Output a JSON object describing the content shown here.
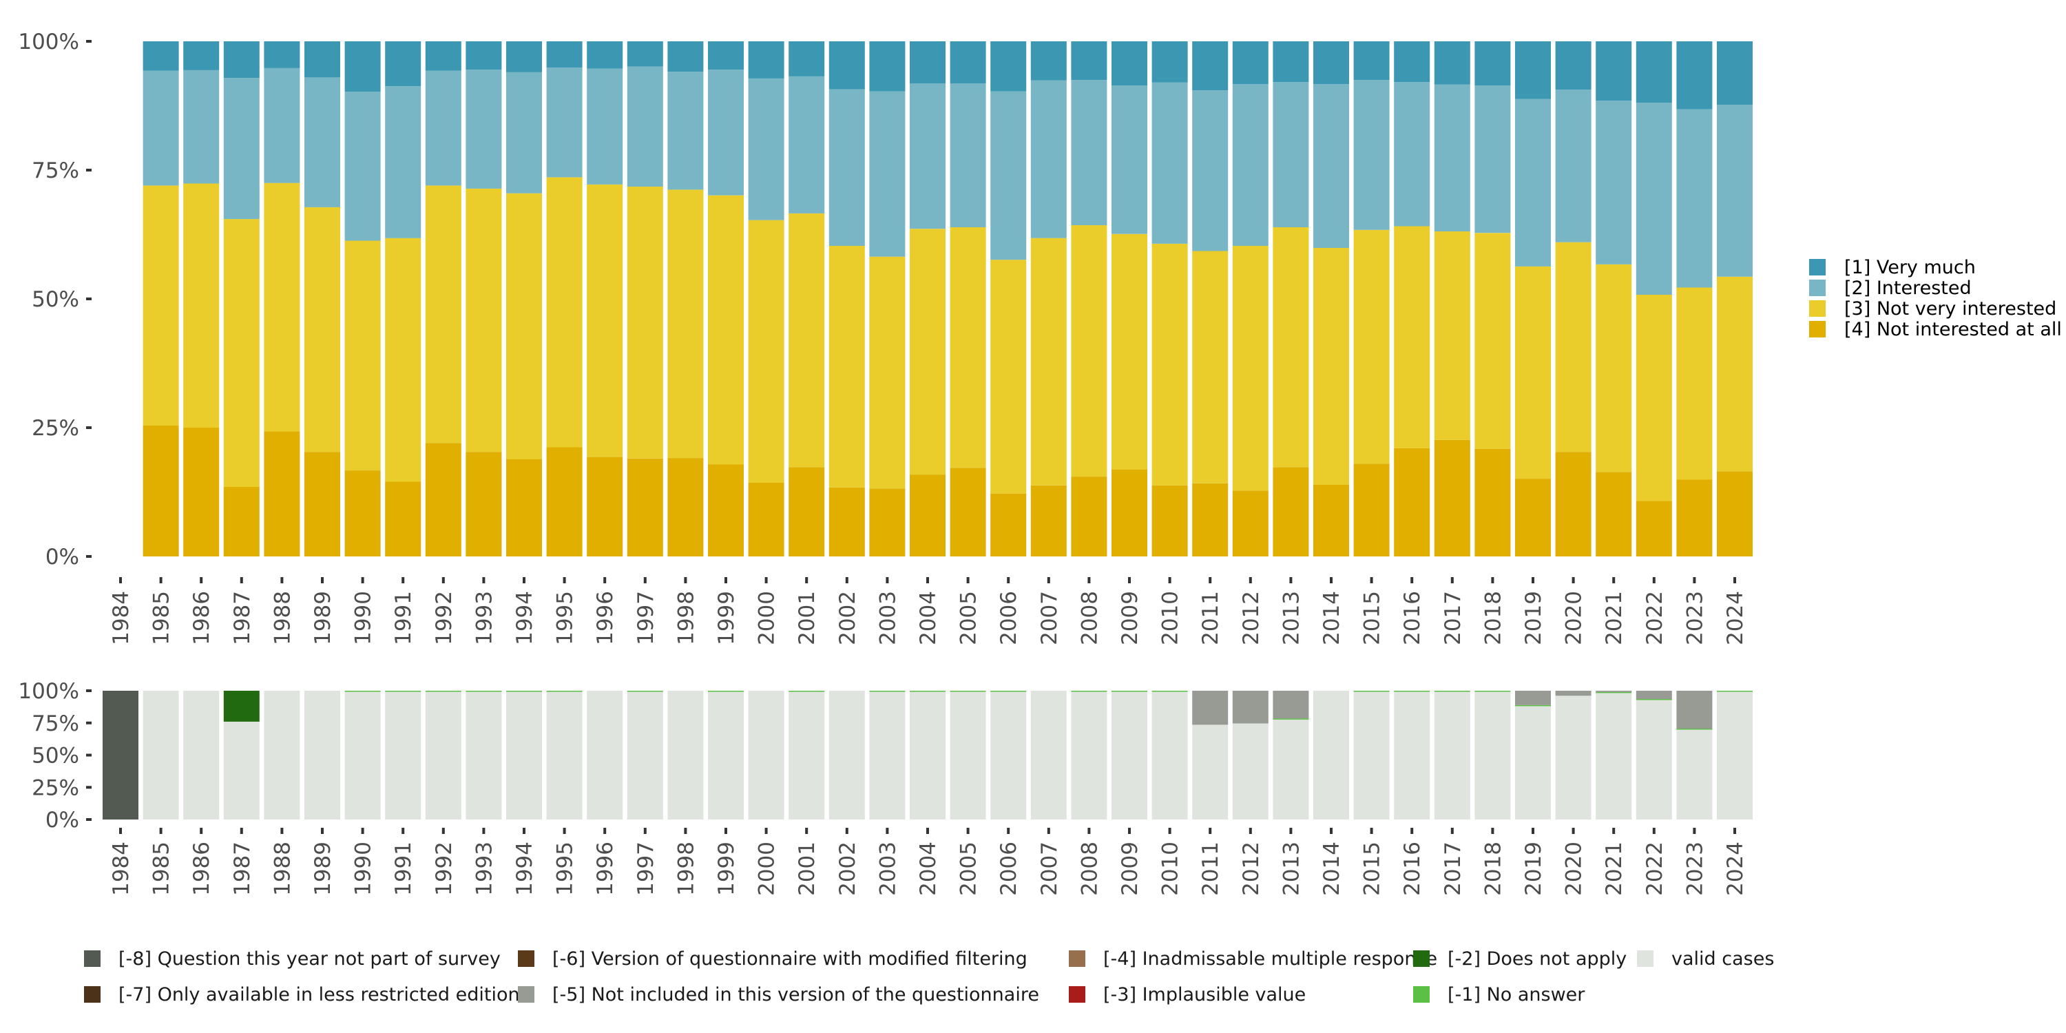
{
  "chart_data": [
    {
      "type": "bar",
      "stacked": true,
      "normalized": true,
      "title": "",
      "xlabel": "",
      "ylabel": "",
      "ylim": [
        0,
        100
      ],
      "yticks": [
        "0%",
        "25%",
        "50%",
        "75%",
        "100%"
      ],
      "ytick_values": [
        0,
        25,
        50,
        75,
        100
      ],
      "xticks": [
        "1984",
        "1985",
        "1986",
        "1987",
        "1988",
        "1989",
        "1990",
        "1991",
        "1992",
        "1993",
        "1994",
        "1995",
        "1996",
        "1997",
        "1998",
        "1999",
        "2000",
        "2001",
        "2002",
        "2003",
        "2004",
        "2005",
        "2006",
        "2007",
        "2008",
        "2009",
        "2010",
        "2011",
        "2012",
        "2013",
        "2014",
        "2015",
        "2016",
        "2017",
        "2018",
        "2019",
        "2020",
        "2021",
        "2022",
        "2023",
        "2024"
      ],
      "categories": [
        "1985",
        "1986",
        "1987",
        "1988",
        "1989",
        "1990",
        "1991",
        "1992",
        "1993",
        "1994",
        "1995",
        "1996",
        "1997",
        "1998",
        "1999",
        "2000",
        "2001",
        "2002",
        "2003",
        "2004",
        "2005",
        "2006",
        "2007",
        "2008",
        "2009",
        "2010",
        "2011",
        "2012",
        "2013",
        "2014",
        "2015",
        "2016",
        "2017",
        "2018",
        "2019",
        "2020",
        "2021",
        "2022",
        "2023",
        "2024"
      ],
      "legend_position": "right",
      "grid": false,
      "series": [
        {
          "name": "[4] Not interested at all",
          "color": "#E0AF00",
          "values": [
            25.4,
            25.0,
            13.5,
            24.3,
            20.3,
            16.7,
            14.5,
            22.0,
            20.3,
            18.9,
            21.2,
            19.3,
            19.0,
            19.1,
            17.9,
            14.3,
            17.3,
            13.4,
            13.2,
            15.9,
            17.2,
            12.2,
            13.8,
            15.5,
            16.9,
            13.8,
            14.2,
            12.8,
            17.3,
            13.9,
            18.0,
            21.0,
            22.6,
            20.9,
            15.1,
            20.3,
            16.4,
            10.8,
            14.9,
            16.5
          ]
        },
        {
          "name": "[3] Not very interested",
          "color": "#EACC2B",
          "values": [
            46.6,
            47.4,
            52.0,
            48.2,
            47.5,
            44.6,
            47.3,
            50.0,
            51.1,
            51.6,
            52.4,
            52.9,
            52.8,
            52.1,
            52.2,
            51.0,
            49.3,
            46.9,
            45.0,
            47.7,
            46.7,
            45.4,
            48.0,
            48.8,
            45.7,
            46.9,
            45.1,
            47.5,
            46.6,
            46.0,
            45.4,
            43.1,
            40.5,
            41.9,
            41.2,
            40.7,
            40.3,
            40.0,
            37.3,
            37.8
          ]
        },
        {
          "name": "[2] Interested",
          "color": "#79B6C5",
          "values": [
            22.3,
            22.0,
            27.4,
            22.3,
            25.2,
            28.9,
            29.5,
            22.3,
            23.1,
            23.5,
            21.3,
            22.5,
            23.3,
            22.9,
            24.4,
            27.5,
            26.6,
            30.4,
            32.1,
            28.2,
            27.9,
            32.7,
            30.6,
            28.2,
            28.8,
            31.3,
            31.2,
            31.4,
            28.2,
            31.8,
            29.1,
            28.0,
            28.5,
            28.6,
            32.5,
            29.6,
            31.8,
            37.3,
            34.6,
            33.4
          ]
        },
        {
          "name": "[1] Very much",
          "color": "#3C98B2",
          "values": [
            5.7,
            5.6,
            7.1,
            5.2,
            7.0,
            9.8,
            8.7,
            5.7,
            5.5,
            6.0,
            5.1,
            5.3,
            4.9,
            5.9,
            5.5,
            7.2,
            6.8,
            9.3,
            9.7,
            8.2,
            8.2,
            9.7,
            7.6,
            7.5,
            8.6,
            8.0,
            9.5,
            8.3,
            7.9,
            8.3,
            7.5,
            7.9,
            8.4,
            8.6,
            11.2,
            9.4,
            11.5,
            11.9,
            13.2,
            12.3
          ]
        }
      ],
      "legend": [
        "[1] Very much",
        "[2] Interested",
        "[3] Not very interested",
        "[4] Not interested at all"
      ]
    },
    {
      "type": "bar",
      "stacked": true,
      "normalized": true,
      "title": "",
      "xlabel": "",
      "ylabel": "",
      "ylim": [
        0,
        100
      ],
      "yticks": [
        "0%",
        "25%",
        "50%",
        "75%",
        "100%"
      ],
      "ytick_values": [
        0,
        25,
        50,
        75,
        100
      ],
      "categories": [
        "1984",
        "1985",
        "1986",
        "1987",
        "1988",
        "1989",
        "1990",
        "1991",
        "1992",
        "1993",
        "1994",
        "1995",
        "1996",
        "1997",
        "1998",
        "1999",
        "2000",
        "2001",
        "2002",
        "2003",
        "2004",
        "2005",
        "2006",
        "2007",
        "2008",
        "2009",
        "2010",
        "2011",
        "2012",
        "2013",
        "2014",
        "2015",
        "2016",
        "2017",
        "2018",
        "2019",
        "2020",
        "2021",
        "2022",
        "2023",
        "2024"
      ],
      "legend_position": "bottom",
      "grid": false,
      "series": [
        {
          "name": "valid cases",
          "color": "#E0E4DF",
          "values": [
            0,
            100,
            100,
            76,
            100,
            100,
            99.6,
            99.6,
            99.6,
            99.6,
            99.6,
            99.6,
            100,
            99.6,
            100,
            99.6,
            100,
            99.6,
            100,
            99.6,
            99.6,
            99.6,
            99.6,
            100,
            99.6,
            99.6,
            99.6,
            73.6,
            74.6,
            78.0,
            100,
            99.6,
            99.6,
            99.6,
            99.6,
            88.4,
            96.1,
            98.6,
            93.2,
            70.2,
            99.6
          ]
        },
        {
          "name": "[-1] No answer",
          "color": "#5BC044",
          "values": [
            0,
            0,
            0,
            0,
            0,
            0,
            0.4,
            0.4,
            0.4,
            0.4,
            0.4,
            0.4,
            0,
            0.4,
            0,
            0.4,
            0,
            0.4,
            0,
            0.4,
            0.4,
            0.4,
            0.4,
            0,
            0.4,
            0.4,
            0.4,
            0,
            0,
            0.4,
            0,
            0.4,
            0.4,
            0.4,
            0.4,
            0.4,
            0,
            0.4,
            0.4,
            0.4,
            0.4
          ]
        },
        {
          "name": "[-2] Does not apply",
          "color": "#226A10",
          "values": [
            0,
            0,
            0,
            24,
            0,
            0,
            0,
            0,
            0,
            0,
            0,
            0,
            0,
            0,
            0,
            0,
            0,
            0,
            0,
            0,
            0,
            0,
            0,
            0,
            0,
            0,
            0,
            0,
            0,
            0,
            0,
            0,
            0,
            0,
            0,
            0,
            0,
            0,
            0,
            0,
            0
          ]
        },
        {
          "name": "[-3] Implausible value",
          "color": "#A81C19",
          "values": [
            0,
            0,
            0,
            0,
            0,
            0,
            0,
            0,
            0,
            0,
            0,
            0,
            0,
            0,
            0,
            0,
            0,
            0,
            0,
            0,
            0,
            0,
            0,
            0,
            0,
            0,
            0,
            0,
            0,
            0,
            0,
            0,
            0,
            0,
            0,
            0,
            0,
            0,
            0,
            0,
            0
          ]
        },
        {
          "name": "[-4] Inadmissable multiple response",
          "color": "#96704C",
          "values": [
            0,
            0,
            0,
            0,
            0,
            0,
            0,
            0,
            0,
            0,
            0,
            0,
            0,
            0,
            0,
            0,
            0,
            0,
            0,
            0,
            0,
            0,
            0,
            0,
            0,
            0,
            0,
            0,
            0,
            0,
            0,
            0,
            0,
            0,
            0,
            0,
            0,
            0,
            0,
            0,
            0
          ]
        },
        {
          "name": "[-5] Not included in this version of the questionnaire",
          "color": "#979B93",
          "values": [
            0,
            0,
            0,
            0,
            0,
            0,
            0,
            0,
            0,
            0,
            0,
            0,
            0,
            0,
            0,
            0,
            0,
            0,
            0,
            0,
            0,
            0,
            0,
            0,
            0,
            0,
            0,
            26.4,
            25.4,
            21.6,
            0,
            0,
            0,
            0,
            0,
            11.2,
            3.9,
            1.0,
            6.4,
            29.4,
            0
          ]
        },
        {
          "name": "[-6] Version of questionnaire with modified filtering",
          "color": "#5A3A18",
          "values": [
            0,
            0,
            0,
            0,
            0,
            0,
            0,
            0,
            0,
            0,
            0,
            0,
            0,
            0,
            0,
            0,
            0,
            0,
            0,
            0,
            0,
            0,
            0,
            0,
            0,
            0,
            0,
            0,
            0,
            0,
            0,
            0,
            0,
            0,
            0,
            0,
            0,
            0,
            0,
            0,
            0
          ]
        },
        {
          "name": "[-7] Only available in less restricted edition",
          "color": "#4C3219",
          "values": [
            0,
            0,
            0,
            0,
            0,
            0,
            0,
            0,
            0,
            0,
            0,
            0,
            0,
            0,
            0,
            0,
            0,
            0,
            0,
            0,
            0,
            0,
            0,
            0,
            0,
            0,
            0,
            0,
            0,
            0,
            0,
            0,
            0,
            0,
            0,
            0,
            0,
            0,
            0,
            0,
            0
          ]
        },
        {
          "name": "[-8] Question this year not part of survey",
          "color": "#535A51",
          "values": [
            100,
            0,
            0,
            0,
            0,
            0,
            0,
            0,
            0,
            0,
            0,
            0,
            0,
            0,
            0,
            0,
            0,
            0,
            0,
            0,
            0,
            0,
            0,
            0,
            0,
            0,
            0,
            0,
            0,
            0,
            0,
            0,
            0,
            0,
            0,
            0,
            0,
            0,
            0,
            0,
            0
          ]
        }
      ],
      "legend": [
        [
          "[-8] Question this year not part of survey",
          "[-6] Version of questionnaire with modified filtering",
          "[-4] Inadmissable multiple response",
          "[-2] Does not apply",
          "valid cases"
        ],
        [
          "[-7] Only available in less restricted edition",
          "[-5] Not included in this version of the questionnaire",
          "[-3] Implausible value",
          "[-1] No answer"
        ]
      ]
    }
  ]
}
